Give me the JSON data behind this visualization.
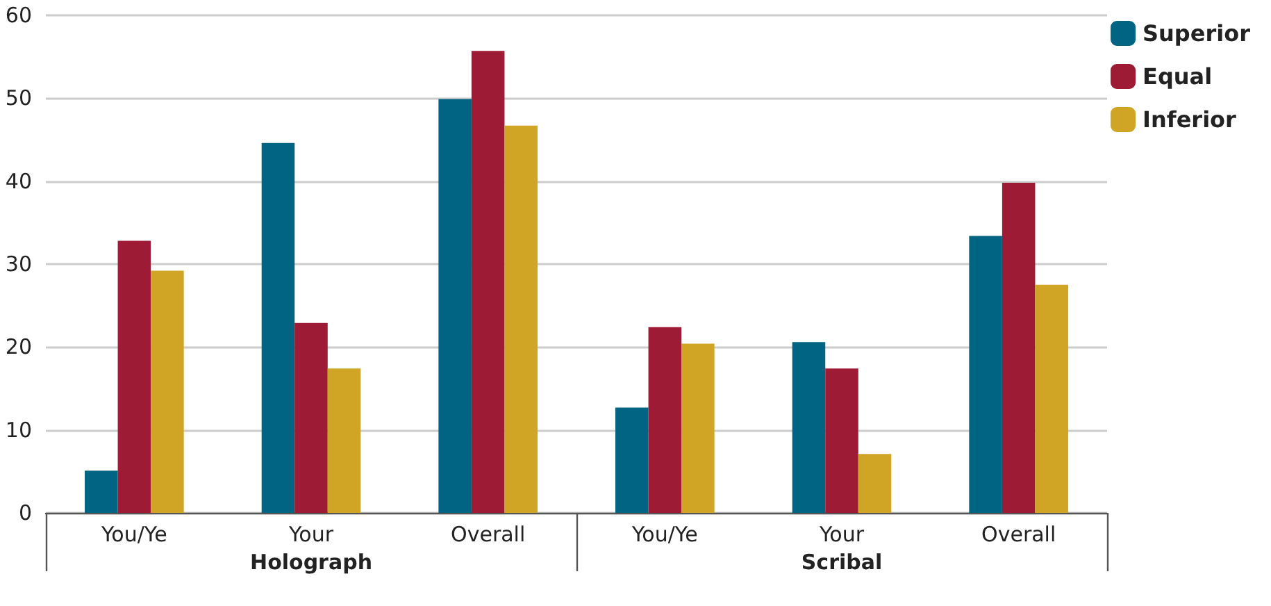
{
  "chart_data": {
    "type": "bar",
    "categories": [
      "You/Ye",
      "Your",
      "Overall",
      "You/Ye",
      "Your",
      "Overall"
    ],
    "annotations": [
      "Holograph",
      "Scribal"
    ],
    "series": [
      {
        "name": "Superior",
        "color": "#006482",
        "values": [
          5.1,
          44.6,
          49.9,
          12.7,
          20.6,
          33.4
        ]
      },
      {
        "name": "Equal",
        "color": "#9e1b36",
        "values": [
          32.8,
          22.9,
          55.7,
          22.4,
          17.4,
          39.8
        ]
      },
      {
        "name": "Inferior",
        "color": "#d0a525",
        "values": [
          29.2,
          17.4,
          46.7,
          20.4,
          7.1,
          27.5
        ]
      }
    ],
    "ylim": [
      0,
      60
    ],
    "yticks": [
      0,
      10,
      20,
      30,
      40,
      50,
      60
    ],
    "grid": "y",
    "legend": "top right"
  }
}
